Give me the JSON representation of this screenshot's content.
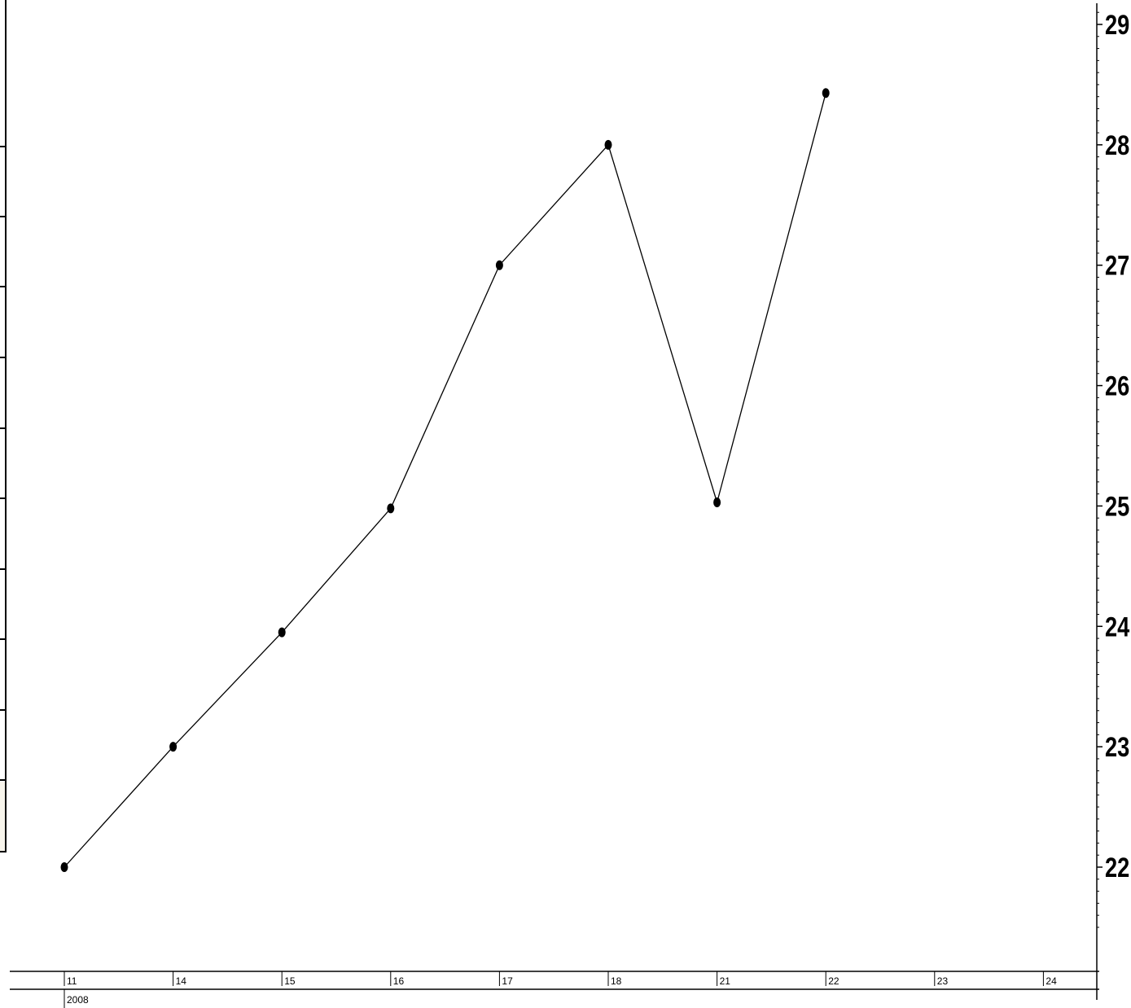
{
  "chart_data": {
    "type": "line",
    "categories": [
      "11",
      "14",
      "15",
      "16",
      "17",
      "18",
      "21",
      "22",
      "23",
      "24"
    ],
    "year_label": "2008",
    "series": [
      {
        "values": [
          22.0,
          23.0,
          23.95,
          24.98,
          27.0,
          28.0,
          25.03,
          28.43,
          null,
          null
        ],
        "marker": "circle",
        "color": "#000000"
      }
    ],
    "yaxis": {
      "position": "right",
      "ylim": [
        21.45,
        29.1
      ],
      "ticks": [
        22,
        23,
        24,
        25,
        26,
        27,
        28,
        29
      ],
      "tick_labels": [
        "22",
        "23",
        "24",
        "25",
        "26",
        "27",
        "28",
        "29"
      ]
    },
    "title": "",
    "xlabel": "",
    "ylabel": "",
    "grid": false,
    "legend": "none",
    "background": "#ffffff",
    "panel_fill": "#f8f5ec"
  }
}
